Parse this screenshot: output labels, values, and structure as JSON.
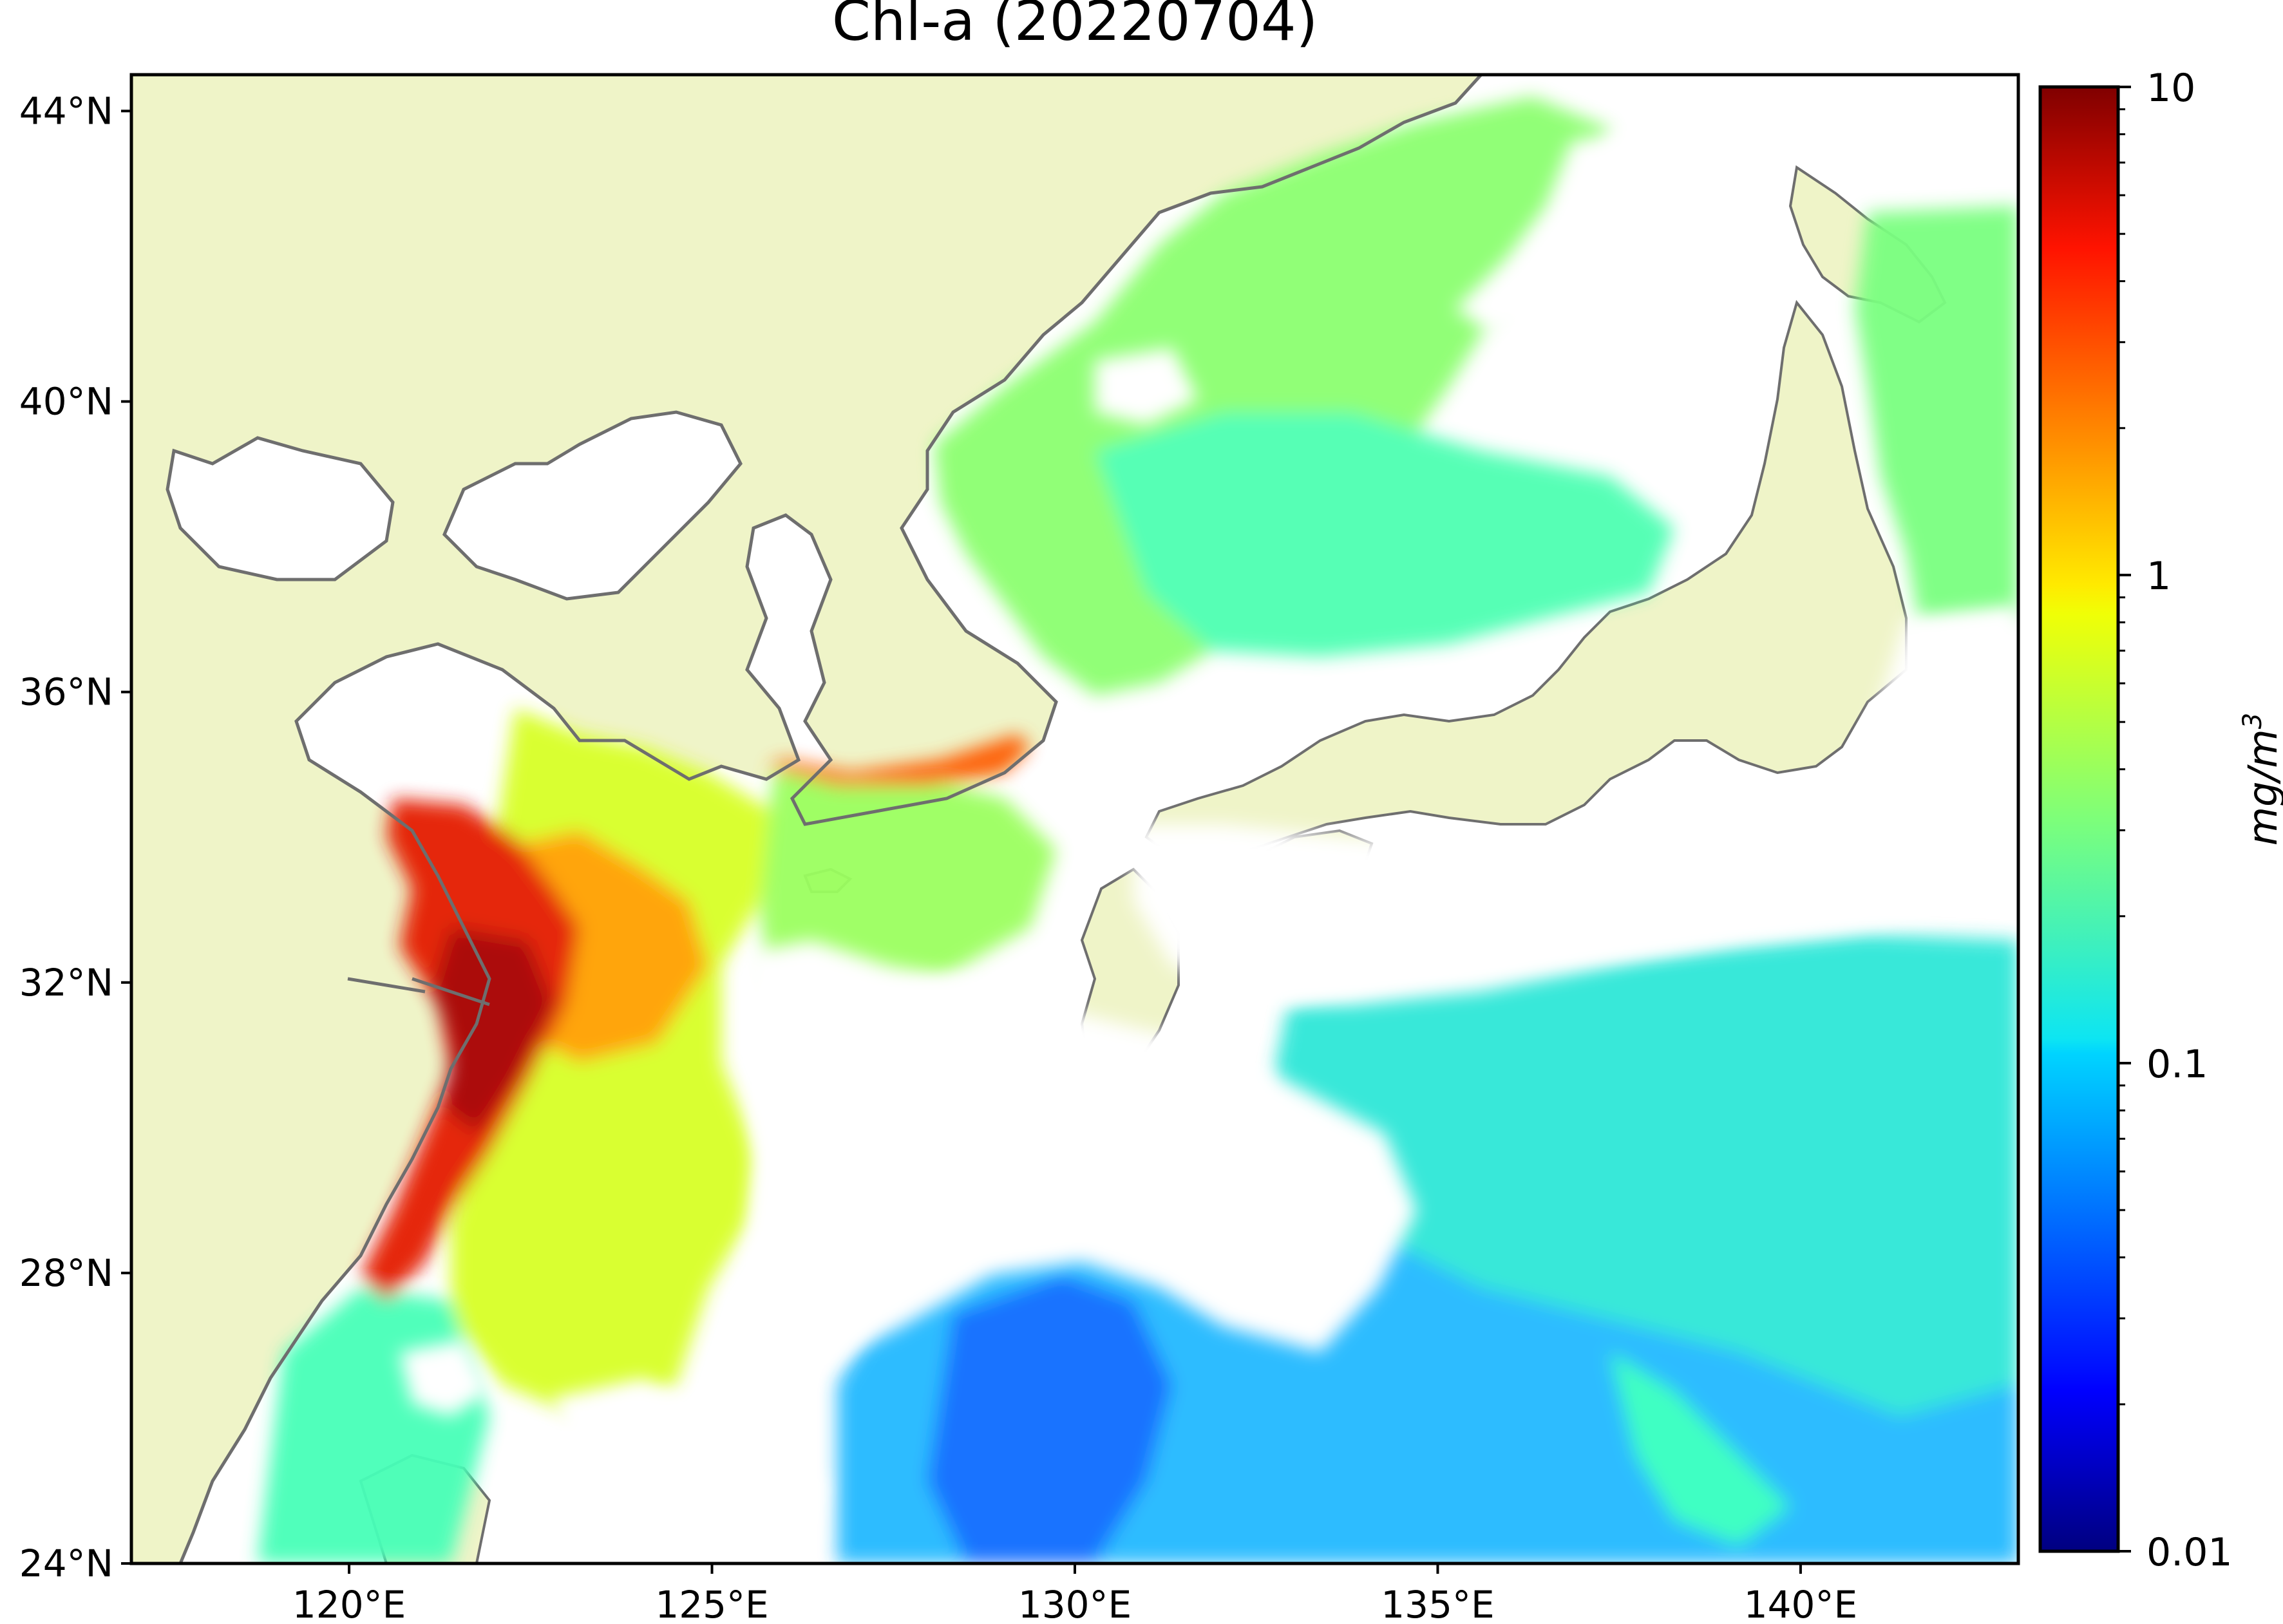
{
  "title": "Chl-a (20220704)",
  "map": {
    "lon_range": [
      117,
      143
    ],
    "lat_range": [
      24,
      44.5
    ],
    "projection": "PlateCarree",
    "land_color": "#eff4c8",
    "coastline_color": "#6e6e6e",
    "no_data_color": "#ffffff",
    "lon_ticks": [
      {
        "value": 120,
        "label": "120°E"
      },
      {
        "value": 125,
        "label": "125°E"
      },
      {
        "value": 130,
        "label": "130°E"
      },
      {
        "value": 135,
        "label": "135°E"
      },
      {
        "value": 140,
        "label": "140°E"
      }
    ],
    "lat_ticks": [
      {
        "value": 24,
        "label": "24°N"
      },
      {
        "value": 28,
        "label": "28°N"
      },
      {
        "value": 32,
        "label": "32°N"
      },
      {
        "value": 36,
        "label": "36°N"
      },
      {
        "value": 40,
        "label": "40°N"
      },
      {
        "value": 44,
        "label": "44°N"
      }
    ]
  },
  "colorbar": {
    "label_base": "mg/m",
    "label_exponent": "3",
    "scale": "log",
    "range": [
      0.01,
      10
    ],
    "colormap": "jet",
    "ticks": [
      {
        "value": 10,
        "label": "10"
      },
      {
        "value": 1,
        "label": "1"
      },
      {
        "value": 0.1,
        "label": "0.1"
      },
      {
        "value": 0.01,
        "label": "0.01"
      }
    ]
  }
}
